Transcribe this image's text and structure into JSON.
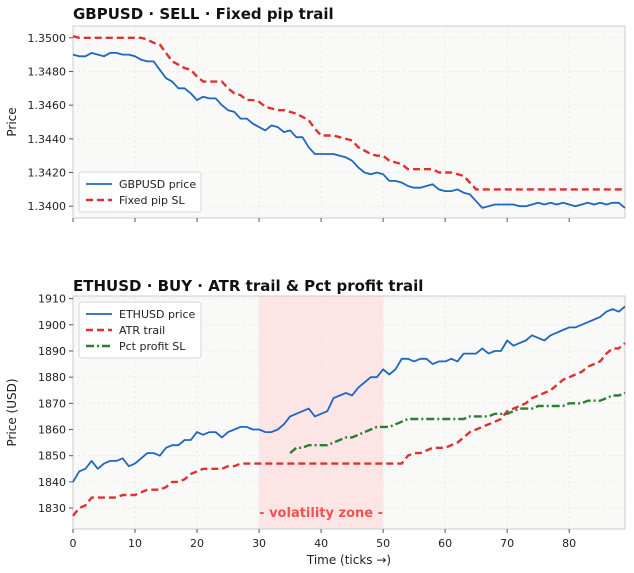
{
  "chart_data": [
    {
      "type": "line",
      "title": "GBPUSD  ·  SELL  ·  Fixed pip trail",
      "xlabel": "",
      "ylabel": "Price",
      "xlim": [
        0,
        89
      ],
      "ylim": [
        1.3393,
        1.3507
      ],
      "yticks": [
        1.34,
        1.342,
        1.344,
        1.346,
        1.348,
        1.35
      ],
      "ytick_labels": [
        "1.3400",
        "1.3420",
        "1.3440",
        "1.3460",
        "1.3480",
        "1.3500"
      ],
      "xticks": [
        0,
        10,
        20,
        30,
        40,
        50,
        60,
        70,
        80
      ],
      "show_xtick_labels": false,
      "grid": true,
      "legend_position": "lower-left",
      "series": [
        {
          "name": "GBPUSD price",
          "color": "#1f66c1",
          "style": "solid",
          "x": [
            0,
            1,
            2,
            3,
            4,
            5,
            6,
            7,
            8,
            9,
            10,
            11,
            12,
            13,
            14,
            15,
            16,
            17,
            18,
            19,
            20,
            21,
            22,
            23,
            24,
            25,
            26,
            27,
            28,
            29,
            30,
            31,
            32,
            33,
            34,
            35,
            36,
            37,
            38,
            39,
            40,
            41,
            42,
            43,
            44,
            45,
            46,
            47,
            48,
            49,
            50,
            51,
            52,
            53,
            54,
            55,
            56,
            57,
            58,
            59,
            60,
            61,
            62,
            63,
            64,
            65,
            66,
            67,
            68,
            69,
            70,
            71,
            72,
            73,
            74,
            75,
            76,
            77,
            78,
            79,
            80,
            81,
            82,
            83,
            84,
            85,
            86,
            87,
            88,
            89
          ],
          "y": [
            1.349,
            1.3489,
            1.3489,
            1.3491,
            1.349,
            1.3489,
            1.3491,
            1.3491,
            1.349,
            1.349,
            1.3489,
            1.3487,
            1.3486,
            1.3486,
            1.3481,
            1.3476,
            1.3474,
            1.347,
            1.347,
            1.3467,
            1.3463,
            1.3465,
            1.3464,
            1.3464,
            1.346,
            1.3457,
            1.3456,
            1.3452,
            1.3452,
            1.3449,
            1.3447,
            1.3445,
            1.3448,
            1.3447,
            1.3444,
            1.3445,
            1.3441,
            1.3441,
            1.3435,
            1.3431,
            1.3431,
            1.3431,
            1.3431,
            1.343,
            1.3429,
            1.3427,
            1.3423,
            1.342,
            1.3419,
            1.342,
            1.3419,
            1.3415,
            1.3415,
            1.3414,
            1.3412,
            1.3411,
            1.3411,
            1.3412,
            1.3413,
            1.341,
            1.3409,
            1.3409,
            1.341,
            1.3408,
            1.3407,
            1.3403,
            1.3399,
            1.34,
            1.3401,
            1.3401,
            1.3401,
            1.3401,
            1.34,
            1.34,
            1.3401,
            1.3402,
            1.3401,
            1.3402,
            1.3401,
            1.3402,
            1.3401,
            1.34,
            1.3401,
            1.3402,
            1.3401,
            1.3402,
            1.3401,
            1.3402,
            1.3402,
            1.3399
          ]
        },
        {
          "name": "Fixed pip SL",
          "color": "#e03131",
          "style": "dashed",
          "x": [
            0,
            1,
            2,
            3,
            4,
            5,
            6,
            7,
            8,
            9,
            10,
            11,
            12,
            13,
            14,
            15,
            16,
            17,
            18,
            19,
            20,
            21,
            22,
            23,
            24,
            25,
            26,
            27,
            28,
            29,
            30,
            31,
            32,
            33,
            34,
            35,
            36,
            37,
            38,
            39,
            40,
            41,
            42,
            43,
            44,
            45,
            46,
            47,
            48,
            49,
            50,
            51,
            52,
            53,
            54,
            55,
            56,
            57,
            58,
            59,
            60,
            61,
            62,
            63,
            64,
            65,
            66,
            67,
            68,
            69,
            70,
            71,
            72,
            73,
            74,
            75,
            76,
            77,
            78,
            79,
            80,
            81,
            82,
            83,
            84,
            85,
            86,
            87,
            88,
            89
          ],
          "y": [
            1.3501,
            1.35,
            1.35,
            1.35,
            1.35,
            1.35,
            1.35,
            1.35,
            1.35,
            1.35,
            1.35,
            1.35,
            1.3499,
            1.3497,
            1.3496,
            1.3491,
            1.3486,
            1.3484,
            1.3482,
            1.3481,
            1.3477,
            1.3474,
            1.3474,
            1.3474,
            1.3474,
            1.347,
            1.3467,
            1.3466,
            1.3463,
            1.3463,
            1.3462,
            1.3459,
            1.3458,
            1.3457,
            1.3457,
            1.3456,
            1.3455,
            1.3453,
            1.3451,
            1.3446,
            1.3442,
            1.3442,
            1.3442,
            1.3441,
            1.344,
            1.3439,
            1.3435,
            1.3433,
            1.3431,
            1.343,
            1.343,
            1.3427,
            1.3426,
            1.3425,
            1.3422,
            1.3422,
            1.3422,
            1.3422,
            1.3422,
            1.342,
            1.342,
            1.342,
            1.3419,
            1.3418,
            1.3414,
            1.341,
            1.341,
            1.341,
            1.341,
            1.341,
            1.341,
            1.341,
            1.341,
            1.341,
            1.341,
            1.341,
            1.341,
            1.341,
            1.341,
            1.341,
            1.341,
            1.341,
            1.341,
            1.341,
            1.341,
            1.341,
            1.341,
            1.341,
            1.341,
            1.341
          ]
        }
      ]
    },
    {
      "type": "line",
      "title": "ETHUSD  ·  BUY  ·  ATR trail  &  Pct profit trail",
      "xlabel": "Time (ticks →)",
      "ylabel": "Price (USD)",
      "xlim": [
        0,
        89
      ],
      "ylim": [
        1822,
        1911
      ],
      "yticks": [
        1830,
        1840,
        1850,
        1860,
        1870,
        1880,
        1890,
        1900,
        1910
      ],
      "ytick_labels": [
        "1830",
        "1840",
        "1850",
        "1860",
        "1870",
        "1880",
        "1890",
        "1900",
        "1910"
      ],
      "xticks": [
        0,
        10,
        20,
        30,
        40,
        50,
        60,
        70,
        80
      ],
      "xtick_labels": [
        "0",
        "10",
        "20",
        "30",
        "40",
        "50",
        "60",
        "70",
        "80"
      ],
      "show_xtick_labels": true,
      "grid": true,
      "legend_position": "top-left",
      "shaded_region": {
        "x": [
          30,
          50
        ],
        "label": "- volatility zone -",
        "color": "#ffd6d6",
        "label_color": "#f05252"
      },
      "series": [
        {
          "name": "ETHUSD price",
          "color": "#1f66c1",
          "style": "solid",
          "x": [
            0,
            1,
            2,
            3,
            4,
            5,
            6,
            7,
            8,
            9,
            10,
            11,
            12,
            13,
            14,
            15,
            16,
            17,
            18,
            19,
            20,
            21,
            22,
            23,
            24,
            25,
            26,
            27,
            28,
            29,
            30,
            31,
            32,
            33,
            34,
            35,
            36,
            37,
            38,
            39,
            40,
            41,
            42,
            43,
            44,
            45,
            46,
            47,
            48,
            49,
            50,
            51,
            52,
            53,
            54,
            55,
            56,
            57,
            58,
            59,
            60,
            61,
            62,
            63,
            64,
            65,
            66,
            67,
            68,
            69,
            70,
            71,
            72,
            73,
            74,
            75,
            76,
            77,
            78,
            79,
            80,
            81,
            82,
            83,
            84,
            85,
            86,
            87,
            88,
            89
          ],
          "y": [
            1840,
            1844,
            1845,
            1848,
            1845,
            1847,
            1848,
            1848,
            1849,
            1846,
            1847,
            1849,
            1851,
            1851,
            1850,
            1853,
            1854,
            1854,
            1856,
            1856,
            1859,
            1858,
            1859,
            1859,
            1857,
            1859,
            1860,
            1861,
            1861,
            1860,
            1860,
            1859,
            1859,
            1860,
            1862,
            1865,
            1866,
            1867,
            1868,
            1865,
            1866,
            1867,
            1872,
            1873,
            1874,
            1873,
            1876,
            1878,
            1880,
            1880,
            1883,
            1881,
            1883,
            1887,
            1887,
            1886,
            1887,
            1887,
            1885,
            1886,
            1886,
            1887,
            1886,
            1889,
            1889,
            1889,
            1891,
            1889,
            1890,
            1890,
            1894,
            1892,
            1893,
            1894,
            1896,
            1895,
            1894,
            1896,
            1897,
            1898,
            1899,
            1899,
            1900,
            1901,
            1902,
            1903,
            1905,
            1906,
            1905,
            1907
          ]
        },
        {
          "name": "ATR trail",
          "color": "#e03131",
          "style": "dashed",
          "x": [
            0,
            1,
            2,
            3,
            4,
            5,
            6,
            7,
            8,
            9,
            10,
            11,
            12,
            13,
            14,
            15,
            16,
            17,
            18,
            19,
            20,
            21,
            22,
            23,
            24,
            25,
            26,
            27,
            28,
            29,
            30,
            31,
            32,
            33,
            34,
            35,
            36,
            37,
            38,
            39,
            40,
            41,
            42,
            43,
            44,
            45,
            46,
            47,
            48,
            49,
            50,
            51,
            52,
            53,
            54,
            55,
            56,
            57,
            58,
            59,
            60,
            61,
            62,
            63,
            64,
            65,
            66,
            67,
            68,
            69,
            70,
            71,
            72,
            73,
            74,
            75,
            76,
            77,
            78,
            79,
            80,
            81,
            82,
            83,
            84,
            85,
            86,
            87,
            88,
            89
          ],
          "y": [
            1827,
            1830,
            1831,
            1834,
            1834,
            1834,
            1834,
            1834,
            1835,
            1835,
            1835,
            1836,
            1837,
            1837,
            1837,
            1838,
            1840,
            1840,
            1841,
            1843,
            1844,
            1845,
            1845,
            1845,
            1845,
            1846,
            1846,
            1847,
            1847,
            1847,
            1847,
            1847,
            1847,
            1847,
            1847,
            1847,
            1847,
            1847,
            1847,
            1847,
            1847,
            1847,
            1847,
            1847,
            1847,
            1847,
            1847,
            1847,
            1847,
            1847,
            1847,
            1847,
            1847,
            1847,
            1850,
            1851,
            1851,
            1852,
            1853,
            1853,
            1853,
            1854,
            1855,
            1857,
            1859,
            1860,
            1861,
            1862,
            1863,
            1864,
            1867,
            1868,
            1869,
            1870,
            1872,
            1873,
            1874,
            1875,
            1877,
            1879,
            1880,
            1881,
            1882,
            1884,
            1885,
            1886,
            1889,
            1891,
            1891,
            1893
          ]
        },
        {
          "name": "Pct profit SL",
          "color": "#2e7d32",
          "style": "dashdot",
          "x": [
            35,
            36,
            37,
            38,
            39,
            40,
            41,
            42,
            43,
            44,
            45,
            46,
            47,
            48,
            49,
            50,
            51,
            52,
            53,
            54,
            55,
            56,
            57,
            58,
            59,
            60,
            61,
            62,
            63,
            64,
            65,
            66,
            67,
            68,
            69,
            70,
            71,
            72,
            73,
            74,
            75,
            76,
            77,
            78,
            79,
            80,
            81,
            82,
            83,
            84,
            85,
            86,
            87,
            88,
            89
          ],
          "y": [
            1851,
            1853,
            1853,
            1854,
            1854,
            1854,
            1854,
            1855,
            1856,
            1857,
            1857,
            1858,
            1859,
            1860,
            1861,
            1861,
            1861,
            1862,
            1863,
            1864,
            1864,
            1864,
            1864,
            1864,
            1864,
            1864,
            1864,
            1864,
            1864,
            1865,
            1865,
            1865,
            1865,
            1866,
            1866,
            1866,
            1867,
            1868,
            1868,
            1868,
            1869,
            1869,
            1869,
            1869,
            1869,
            1870,
            1870,
            1870,
            1871,
            1871,
            1871,
            1872,
            1873,
            1873,
            1874
          ]
        }
      ]
    }
  ]
}
